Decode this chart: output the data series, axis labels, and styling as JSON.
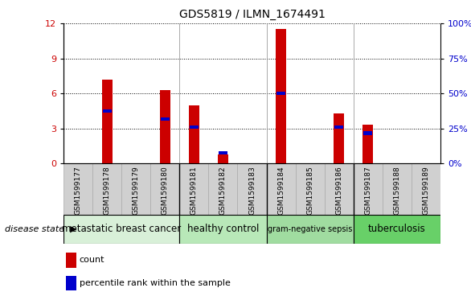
{
  "title": "GDS5819 / ILMN_1674491",
  "samples": [
    "GSM1599177",
    "GSM1599178",
    "GSM1599179",
    "GSM1599180",
    "GSM1599181",
    "GSM1599182",
    "GSM1599183",
    "GSM1599184",
    "GSM1599185",
    "GSM1599186",
    "GSM1599187",
    "GSM1599188",
    "GSM1599189"
  ],
  "counts": [
    0,
    7.2,
    0,
    6.3,
    5.0,
    0.8,
    0,
    11.5,
    0,
    4.3,
    3.3,
    0,
    0
  ],
  "percentile_ranks_scaled": [
    0,
    4.5,
    0,
    3.8,
    3.1,
    0.9,
    0,
    6.0,
    0,
    3.1,
    2.6,
    0,
    0
  ],
  "disease_groups": [
    {
      "label": "metastatic breast cancer",
      "start": 0,
      "end": 4,
      "color": "#d8f0d8"
    },
    {
      "label": "healthy control",
      "start": 4,
      "end": 7,
      "color": "#b8e8b8"
    },
    {
      "label": "gram-negative sepsis",
      "start": 7,
      "end": 10,
      "color": "#a0dca0"
    },
    {
      "label": "tuberculosis",
      "start": 10,
      "end": 13,
      "color": "#68d068"
    }
  ],
  "ylim_left": [
    0,
    12
  ],
  "ylim_right": [
    0,
    100
  ],
  "yticks_left": [
    0,
    3,
    6,
    9,
    12
  ],
  "ytick_labels_left": [
    "0",
    "3",
    "6",
    "9",
    "12"
  ],
  "yticks_right": [
    0,
    25,
    50,
    75,
    100
  ],
  "ytick_labels_right": [
    "0%",
    "25%",
    "50%",
    "75%",
    "100%"
  ],
  "bar_color": "#cc0000",
  "percentile_color": "#0000cc",
  "bar_width": 0.35,
  "grid_color": "#000000",
  "bg_color": "#ffffff",
  "tick_label_color_left": "#cc0000",
  "tick_label_color_right": "#0000cc",
  "disease_state_label": "disease state",
  "legend_count_label": "count",
  "legend_percentile_label": "percentile rank within the sample",
  "xtick_bg": "#d0d0d0",
  "group_boundaries_after": [
    3,
    6,
    9
  ]
}
